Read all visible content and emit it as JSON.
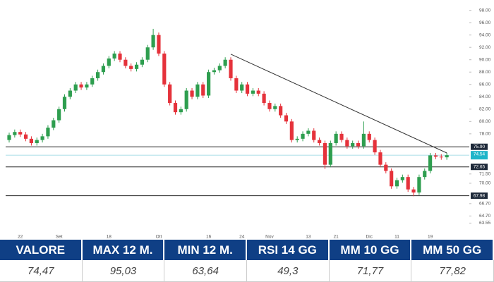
{
  "chart_data": {
    "type": "candlestick",
    "categories": [
      null,
      null,
      "22",
      null,
      null,
      null,
      null,
      null,
      null,
      "Set",
      null,
      null,
      null,
      null,
      null,
      null,
      null,
      null,
      "18",
      null,
      null,
      null,
      null,
      null,
      null,
      null,
      null,
      "Ott",
      null,
      null,
      null,
      null,
      null,
      null,
      null,
      null,
      "16",
      null,
      null,
      null,
      null,
      null,
      "24",
      null,
      null,
      null,
      null,
      "Nov",
      null,
      null,
      null,
      null,
      null,
      null,
      "13",
      null,
      null,
      null,
      null,
      "21",
      null,
      null,
      null,
      null,
      null,
      "Dic",
      null,
      null,
      null,
      null,
      "11",
      null,
      null,
      null,
      null,
      null,
      "19",
      null,
      null,
      null
    ],
    "open": [
      77.0,
      77.8,
      78.3,
      77.9,
      77.2,
      76.5,
      77.0,
      77.6,
      79.0,
      80.2,
      82.0,
      84.0,
      85.0,
      86.0,
      85.5,
      86.0,
      87.0,
      88.0,
      89.0,
      90.2,
      91.0,
      90.0,
      89.0,
      88.5,
      89.2,
      90.0,
      92.0,
      94.0,
      91.0,
      86.0,
      83.0,
      81.5,
      82.0,
      85.0,
      84.0,
      86.0,
      84.2,
      88.0,
      88.3,
      89.0,
      90.0,
      87.0,
      85.0,
      86.0,
      84.5,
      85.0,
      84.5,
      83.0,
      82.0,
      82.5,
      81.0,
      80.0,
      77.0,
      77.2,
      78.0,
      78.5,
      77.0,
      76.5,
      73.0,
      76.5,
      78.0,
      77.0,
      76.0,
      76.5,
      76.0,
      78.0,
      77.0,
      75.0,
      73.0,
      72.0,
      69.5,
      70.5,
      71.0,
      69.0,
      68.5,
      71.0,
      72.0,
      74.5,
      74.3,
      74.2
    ],
    "high": [
      78.2,
      78.7,
      78.7,
      78.3,
      77.6,
      77.4,
      78.0,
      79.4,
      80.6,
      82.4,
      84.4,
      85.4,
      86.4,
      86.4,
      86.4,
      87.4,
      88.4,
      89.4,
      90.6,
      91.4,
      91.4,
      90.4,
      89.4,
      89.6,
      90.4,
      92.4,
      95.0,
      94.4,
      91.4,
      86.4,
      83.4,
      82.4,
      85.4,
      85.4,
      86.4,
      86.4,
      88.4,
      88.7,
      89.4,
      90.4,
      90.4,
      87.4,
      86.4,
      86.4,
      85.4,
      85.4,
      84.9,
      83.4,
      82.9,
      82.9,
      81.4,
      80.4,
      77.6,
      78.4,
      78.9,
      78.9,
      77.4,
      76.9,
      76.9,
      78.4,
      78.4,
      77.4,
      76.9,
      76.9,
      80.0,
      78.4,
      77.4,
      75.4,
      73.4,
      72.4,
      70.9,
      71.4,
      71.4,
      69.4,
      71.4,
      72.4,
      74.9,
      74.9,
      74.7,
      74.9
    ],
    "low": [
      76.6,
      77.4,
      77.5,
      76.8,
      76.1,
      76.1,
      76.6,
      77.2,
      78.6,
      79.8,
      81.6,
      83.6,
      84.6,
      85.1,
      85.1,
      85.6,
      86.6,
      87.6,
      88.6,
      89.8,
      89.6,
      88.6,
      88.1,
      88.1,
      88.8,
      89.6,
      91.6,
      90.6,
      85.6,
      82.6,
      81.1,
      81.1,
      81.6,
      83.6,
      83.6,
      83.8,
      83.8,
      87.6,
      87.9,
      88.6,
      86.6,
      84.6,
      84.6,
      84.1,
      84.1,
      84.1,
      82.6,
      81.6,
      81.6,
      80.6,
      79.6,
      76.6,
      76.6,
      76.8,
      77.6,
      76.6,
      76.1,
      72.3,
      72.6,
      76.1,
      76.6,
      75.6,
      75.6,
      75.6,
      75.6,
      76.6,
      74.6,
      72.6,
      71.6,
      69.1,
      69.1,
      70.1,
      68.6,
      67.9,
      68.1,
      70.6,
      71.6,
      73.9,
      73.8,
      73.8
    ],
    "close": [
      77.8,
      78.3,
      77.9,
      77.2,
      76.5,
      77.0,
      77.6,
      79.0,
      80.2,
      82.0,
      84.0,
      85.0,
      86.0,
      85.5,
      86.0,
      87.0,
      88.0,
      89.0,
      90.2,
      91.0,
      90.0,
      89.0,
      88.5,
      89.2,
      90.0,
      92.0,
      94.0,
      91.0,
      86.0,
      83.0,
      81.5,
      82.0,
      85.0,
      84.0,
      86.0,
      84.2,
      88.0,
      88.3,
      89.0,
      90.0,
      87.0,
      85.0,
      86.0,
      84.5,
      85.0,
      84.5,
      83.0,
      82.0,
      82.5,
      81.0,
      80.0,
      77.0,
      77.2,
      78.0,
      78.5,
      77.0,
      76.5,
      73.0,
      76.5,
      78.0,
      77.0,
      76.0,
      76.5,
      76.0,
      78.0,
      77.0,
      75.0,
      73.0,
      72.0,
      69.5,
      70.5,
      71.0,
      69.0,
      68.5,
      71.0,
      72.0,
      74.5,
      74.3,
      74.2,
      74.54
    ],
    "up_color": "#2e9e4f",
    "down_color": "#e5323b",
    "ylim": [
      62.0,
      99.1
    ],
    "yticks": [
      {
        "value": 98,
        "label": "98.00"
      },
      {
        "value": 96,
        "label": "96.00"
      },
      {
        "value": 94,
        "label": "94.00"
      },
      {
        "value": 92,
        "label": "92.00"
      },
      {
        "value": 90,
        "label": "90.00"
      },
      {
        "value": 88,
        "label": "88.00"
      },
      {
        "value": 86,
        "label": "86.00"
      },
      {
        "value": 84,
        "label": "84.00"
      },
      {
        "value": 82,
        "label": "82.00"
      },
      {
        "value": 80,
        "label": "80.00"
      },
      {
        "value": 78,
        "label": "78.00"
      },
      {
        "value": 71.5,
        "label": "71.50"
      },
      {
        "value": 70,
        "label": "70.00"
      },
      {
        "value": 66.7,
        "label": "66.70"
      },
      {
        "value": 64.7,
        "label": "64.70"
      },
      {
        "value": 63.55,
        "label": "63.55"
      }
    ],
    "levels": [
      {
        "value": 75.9,
        "label": "75.90"
      },
      {
        "value": 72.65,
        "label": "72.65"
      },
      {
        "value": 67.98,
        "label": "67.98"
      }
    ],
    "last_price": {
      "value": 74.54,
      "label": "74.54"
    },
    "trendline": {
      "x": [
        40,
        79
      ],
      "y": [
        90.9,
        74.9
      ]
    }
  },
  "table": {
    "header": [
      "VALORE",
      "MAX 12 M.",
      "MIN 12 M.",
      "RSI 14 GG",
      "MM 10 GG",
      "MM 50 GG"
    ],
    "rows": [
      [
        "74,47",
        "95,03",
        "63,64",
        "49,3",
        "71,77",
        "77,82"
      ]
    ]
  }
}
